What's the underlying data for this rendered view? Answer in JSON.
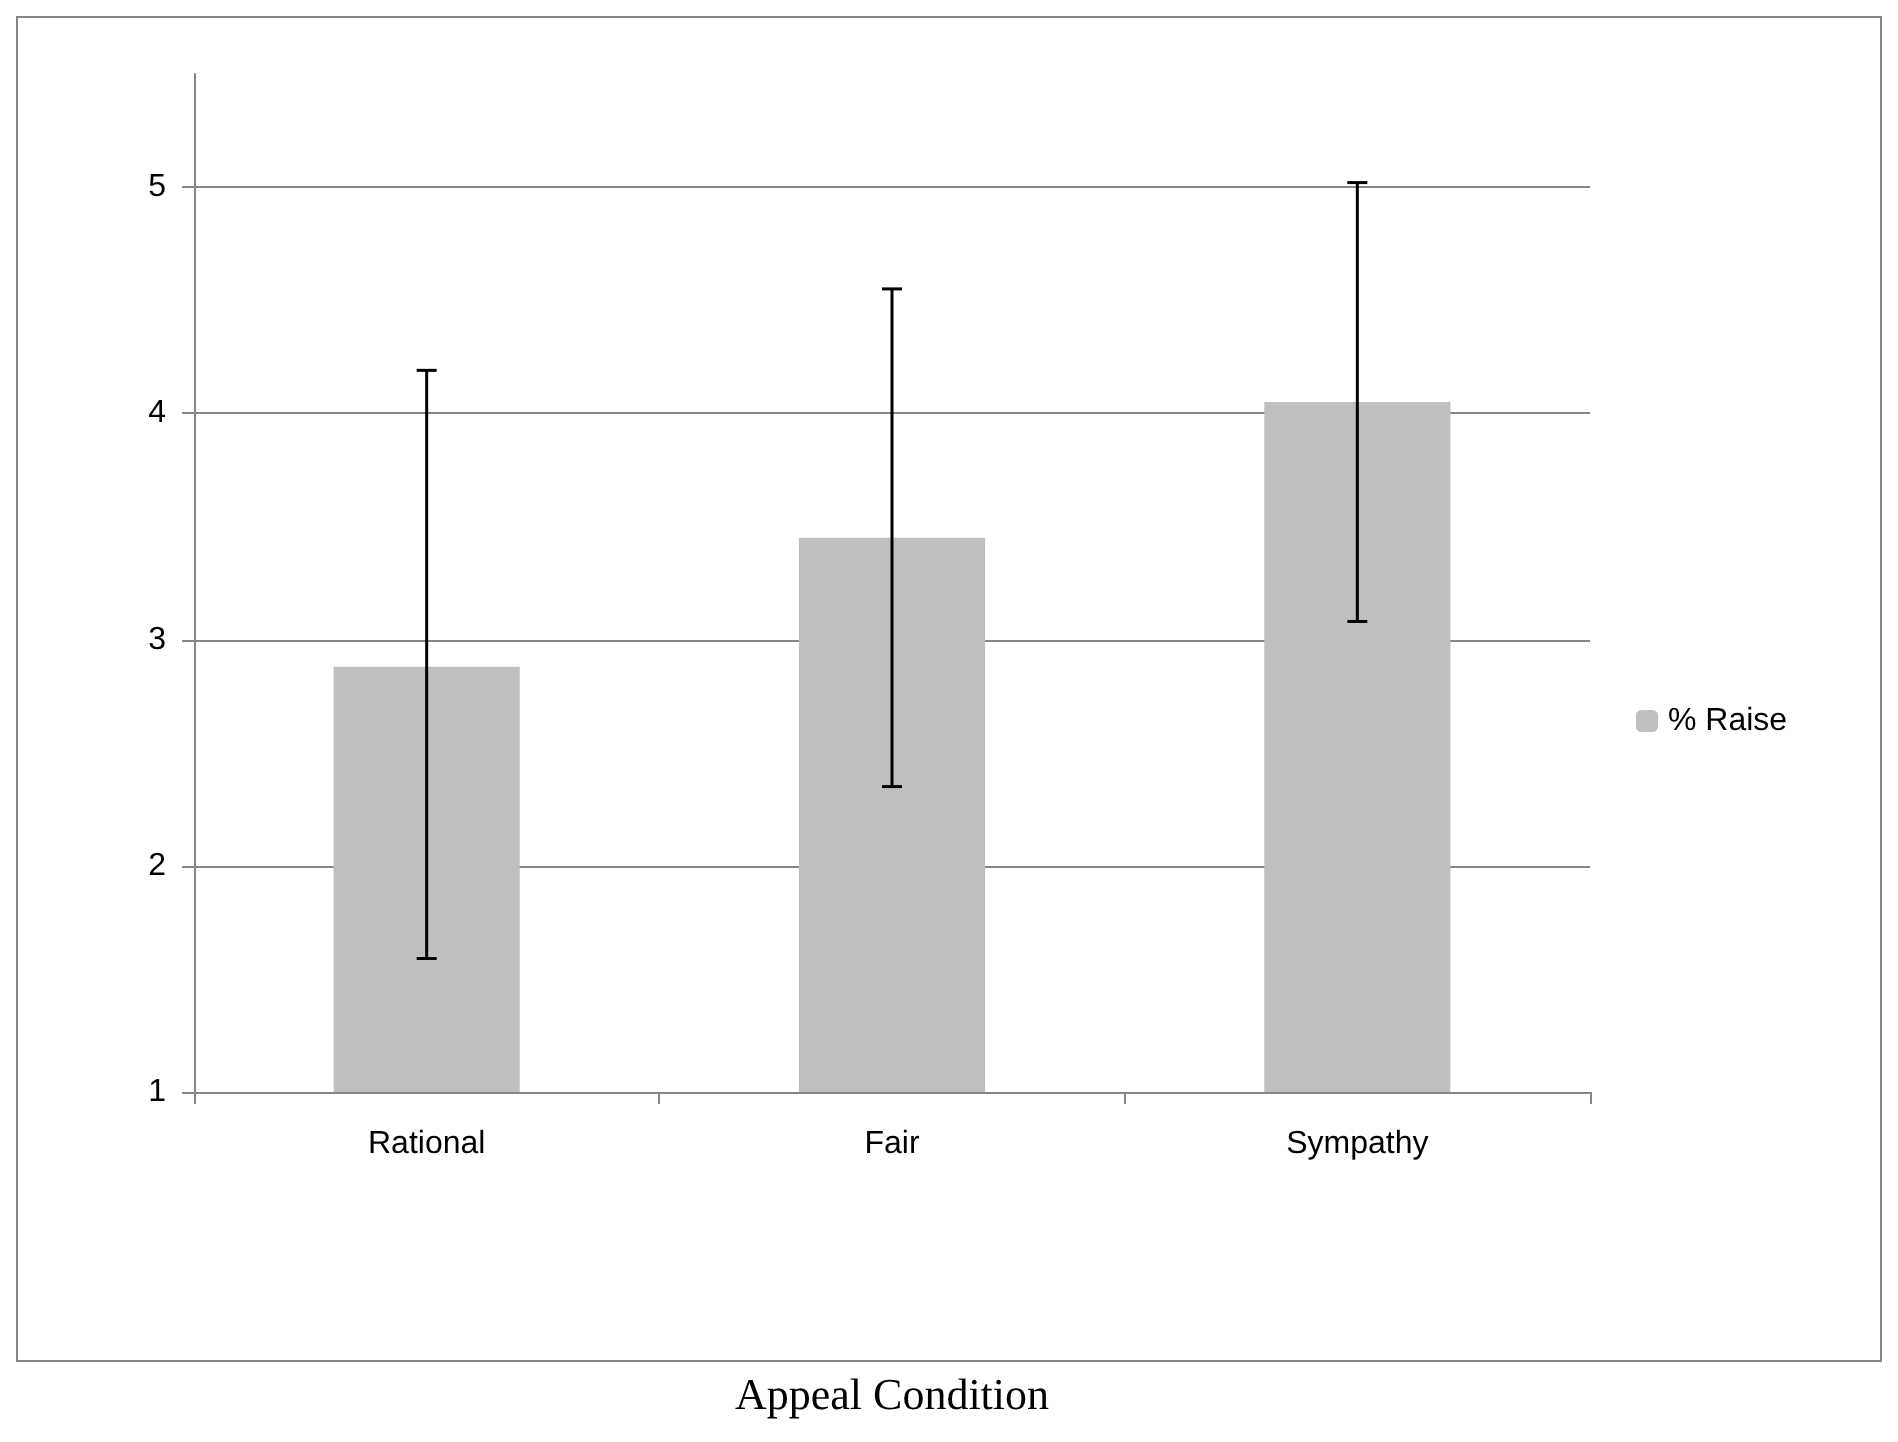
{
  "chart_data": {
    "type": "bar",
    "xlabel": "Appeal Condition",
    "categories": [
      "Rational",
      "Fair",
      "Sympathy"
    ],
    "series": [
      {
        "name": "% Raise",
        "color": "#bfbfbf",
        "values": [
          2.88,
          3.45,
          4.05
        ],
        "errors": [
          [
            1.59,
            4.19
          ],
          [
            2.35,
            4.55
          ],
          [
            3.08,
            5.02
          ]
        ]
      }
    ],
    "ylim": [
      1,
      5.5
    ],
    "yticks": [
      1,
      2,
      3,
      4,
      5
    ],
    "grid": "y",
    "legend": "right"
  }
}
